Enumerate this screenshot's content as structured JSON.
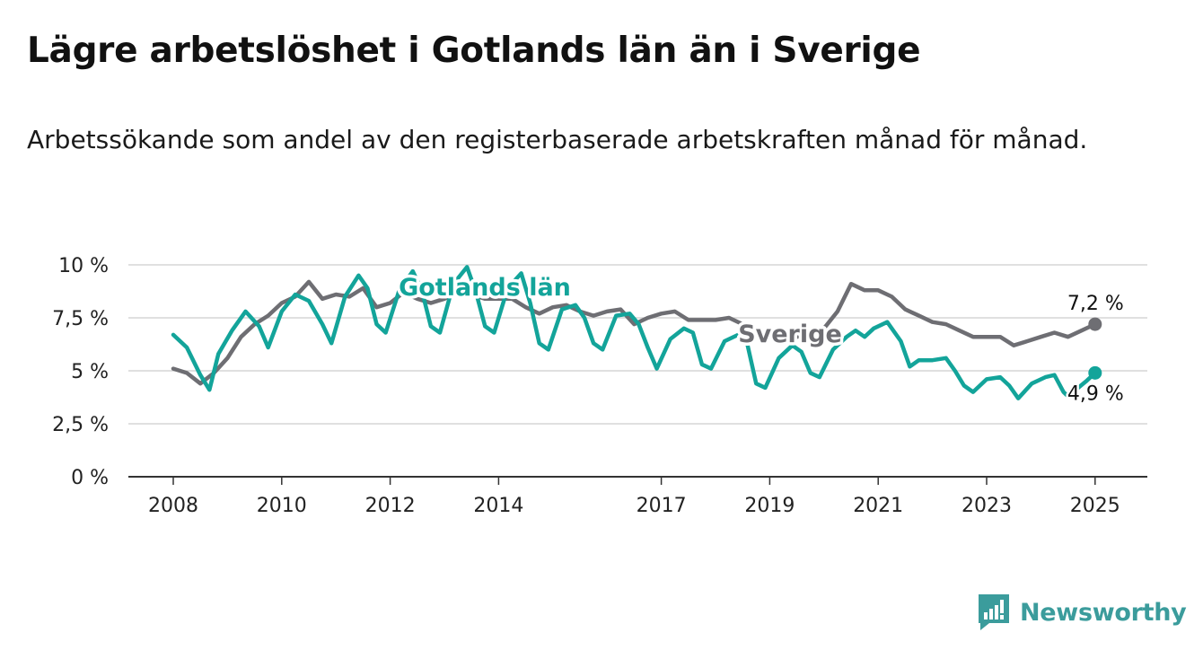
{
  "header": {
    "title": "Lägre arbetslöshet i Gotlands län än i Sverige",
    "subtitle": "Arbetssökande som andel av den registerbaserade arbetskraften månad för månad."
  },
  "brand": {
    "name": "Newsworthy",
    "color": "#3b9c9c",
    "icon": "newsworthy-logo-icon"
  },
  "chart_data": {
    "type": "line",
    "title": "Lägre arbetslöshet i Gotlands län än i Sverige",
    "subtitle": "Arbetssökande som andel av den registerbaserade arbetskraften månad för månad.",
    "xlabel": "",
    "ylabel": "",
    "xlim": [
      "2008-01",
      "2025-02"
    ],
    "ylim": [
      0,
      10
    ],
    "x_ticks": [
      "2008",
      "2010",
      "2012",
      "2014",
      "2017",
      "2019",
      "2021",
      "2023",
      "2025"
    ],
    "y_ticks": [
      "0 %",
      "2,5 %",
      "5 %",
      "7,5 %",
      "10 %"
    ],
    "grid": true,
    "legend": "inline labels",
    "end_labels": {
      "Sverige": "7,2 %",
      "Gotlands län": "4,9 %"
    },
    "series": [
      {
        "name": "Sverige",
        "color": "#6e6e73",
        "points": [
          [
            "2008-01",
            5.1
          ],
          [
            "2008-04",
            4.9
          ],
          [
            "2008-07",
            4.4
          ],
          [
            "2008-10",
            4.9
          ],
          [
            "2009-01",
            5.6
          ],
          [
            "2009-04",
            6.6
          ],
          [
            "2009-07",
            7.2
          ],
          [
            "2009-10",
            7.6
          ],
          [
            "2010-01",
            8.2
          ],
          [
            "2010-04",
            8.5
          ],
          [
            "2010-07",
            9.2
          ],
          [
            "2010-10",
            8.4
          ],
          [
            "2011-01",
            8.6
          ],
          [
            "2011-04",
            8.5
          ],
          [
            "2011-07",
            8.9
          ],
          [
            "2011-10",
            8.0
          ],
          [
            "2012-01",
            8.2
          ],
          [
            "2012-04",
            8.7
          ],
          [
            "2012-07",
            8.4
          ],
          [
            "2012-10",
            8.2
          ],
          [
            "2013-01",
            8.4
          ],
          [
            "2013-04",
            8.7
          ],
          [
            "2013-07",
            8.6
          ],
          [
            "2013-10",
            8.4
          ],
          [
            "2014-01",
            8.4
          ],
          [
            "2014-04",
            8.4
          ],
          [
            "2014-07",
            8.0
          ],
          [
            "2014-10",
            7.7
          ],
          [
            "2015-01",
            8.0
          ],
          [
            "2015-04",
            8.1
          ],
          [
            "2015-07",
            7.8
          ],
          [
            "2015-10",
            7.6
          ],
          [
            "2016-01",
            7.8
          ],
          [
            "2016-04",
            7.9
          ],
          [
            "2016-07",
            7.2
          ],
          [
            "2016-10",
            7.5
          ],
          [
            "2017-01",
            7.7
          ],
          [
            "2017-04",
            7.8
          ],
          [
            "2017-07",
            7.4
          ],
          [
            "2017-10",
            7.4
          ],
          [
            "2018-01",
            7.4
          ],
          [
            "2018-04",
            7.5
          ],
          [
            "2018-07",
            7.2
          ],
          [
            "2018-10",
            6.8
          ],
          [
            "2019-01",
            6.9
          ],
          [
            "2019-04",
            6.8
          ],
          [
            "2019-07",
            6.6
          ],
          [
            "2019-10",
            6.8
          ],
          [
            "2020-01",
            7.0
          ],
          [
            "2020-04",
            7.8
          ],
          [
            "2020-07",
            9.1
          ],
          [
            "2020-10",
            8.8
          ],
          [
            "2021-01",
            8.8
          ],
          [
            "2021-04",
            8.5
          ],
          [
            "2021-07",
            7.9
          ],
          [
            "2021-10",
            7.6
          ],
          [
            "2022-01",
            7.3
          ],
          [
            "2022-04",
            7.2
          ],
          [
            "2022-07",
            6.9
          ],
          [
            "2022-10",
            6.6
          ],
          [
            "2023-01",
            6.6
          ],
          [
            "2023-04",
            6.6
          ],
          [
            "2023-07",
            6.2
          ],
          [
            "2023-10",
            6.4
          ],
          [
            "2024-01",
            6.6
          ],
          [
            "2024-04",
            6.8
          ],
          [
            "2024-07",
            6.6
          ],
          [
            "2024-10",
            6.9
          ],
          [
            "2025-01",
            7.2
          ]
        ]
      },
      {
        "name": "Gotlands län",
        "color": "#13a49a",
        "points": [
          [
            "2008-01",
            6.7
          ],
          [
            "2008-04",
            6.1
          ],
          [
            "2008-07",
            4.8
          ],
          [
            "2008-09",
            4.1
          ],
          [
            "2008-11",
            5.8
          ],
          [
            "2009-02",
            6.9
          ],
          [
            "2009-05",
            7.8
          ],
          [
            "2009-08",
            7.1
          ],
          [
            "2009-10",
            6.1
          ],
          [
            "2010-01",
            7.8
          ],
          [
            "2010-04",
            8.6
          ],
          [
            "2010-07",
            8.3
          ],
          [
            "2010-10",
            7.2
          ],
          [
            "2010-12",
            6.3
          ],
          [
            "2011-03",
            8.5
          ],
          [
            "2011-06",
            9.5
          ],
          [
            "2011-08",
            8.9
          ],
          [
            "2011-10",
            7.2
          ],
          [
            "2011-12",
            6.8
          ],
          [
            "2012-03",
            8.8
          ],
          [
            "2012-06",
            9.7
          ],
          [
            "2012-08",
            8.8
          ],
          [
            "2012-10",
            7.1
          ],
          [
            "2012-12",
            6.8
          ],
          [
            "2013-03",
            9.1
          ],
          [
            "2013-06",
            9.9
          ],
          [
            "2013-08",
            8.7
          ],
          [
            "2013-10",
            7.1
          ],
          [
            "2013-12",
            6.8
          ],
          [
            "2014-03",
            8.9
          ],
          [
            "2014-06",
            9.6
          ],
          [
            "2014-08",
            8.2
          ],
          [
            "2014-10",
            6.3
          ],
          [
            "2014-12",
            6.0
          ],
          [
            "2015-03",
            7.9
          ],
          [
            "2015-06",
            8.1
          ],
          [
            "2015-08",
            7.5
          ],
          [
            "2015-10",
            6.3
          ],
          [
            "2015-12",
            6.0
          ],
          [
            "2016-03",
            7.6
          ],
          [
            "2016-06",
            7.7
          ],
          [
            "2016-08",
            7.2
          ],
          [
            "2016-10",
            6.1
          ],
          [
            "2016-12",
            5.1
          ],
          [
            "2017-03",
            6.5
          ],
          [
            "2017-06",
            7.0
          ],
          [
            "2017-08",
            6.8
          ],
          [
            "2017-10",
            5.3
          ],
          [
            "2017-12",
            5.1
          ],
          [
            "2018-03",
            6.4
          ],
          [
            "2018-06",
            6.7
          ],
          [
            "2018-08",
            6.3
          ],
          [
            "2018-10",
            4.4
          ],
          [
            "2018-12",
            4.2
          ],
          [
            "2019-03",
            5.6
          ],
          [
            "2019-06",
            6.2
          ],
          [
            "2019-08",
            5.9
          ],
          [
            "2019-10",
            4.9
          ],
          [
            "2019-12",
            4.7
          ],
          [
            "2020-03",
            6.0
          ],
          [
            "2020-06",
            6.6
          ],
          [
            "2020-08",
            6.9
          ],
          [
            "2020-10",
            6.6
          ],
          [
            "2020-12",
            7.0
          ],
          [
            "2021-03",
            7.3
          ],
          [
            "2021-06",
            6.4
          ],
          [
            "2021-08",
            5.2
          ],
          [
            "2021-10",
            5.5
          ],
          [
            "2022-01",
            5.5
          ],
          [
            "2022-04",
            5.6
          ],
          [
            "2022-06",
            5.0
          ],
          [
            "2022-08",
            4.3
          ],
          [
            "2022-10",
            4.0
          ],
          [
            "2023-01",
            4.6
          ],
          [
            "2023-04",
            4.7
          ],
          [
            "2023-06",
            4.3
          ],
          [
            "2023-08",
            3.7
          ],
          [
            "2023-11",
            4.4
          ],
          [
            "2024-02",
            4.7
          ],
          [
            "2024-04",
            4.8
          ],
          [
            "2024-06",
            4.0
          ],
          [
            "2024-07",
            3.8
          ],
          [
            "2024-11",
            4.5
          ],
          [
            "2025-01",
            4.9
          ]
        ]
      }
    ]
  }
}
